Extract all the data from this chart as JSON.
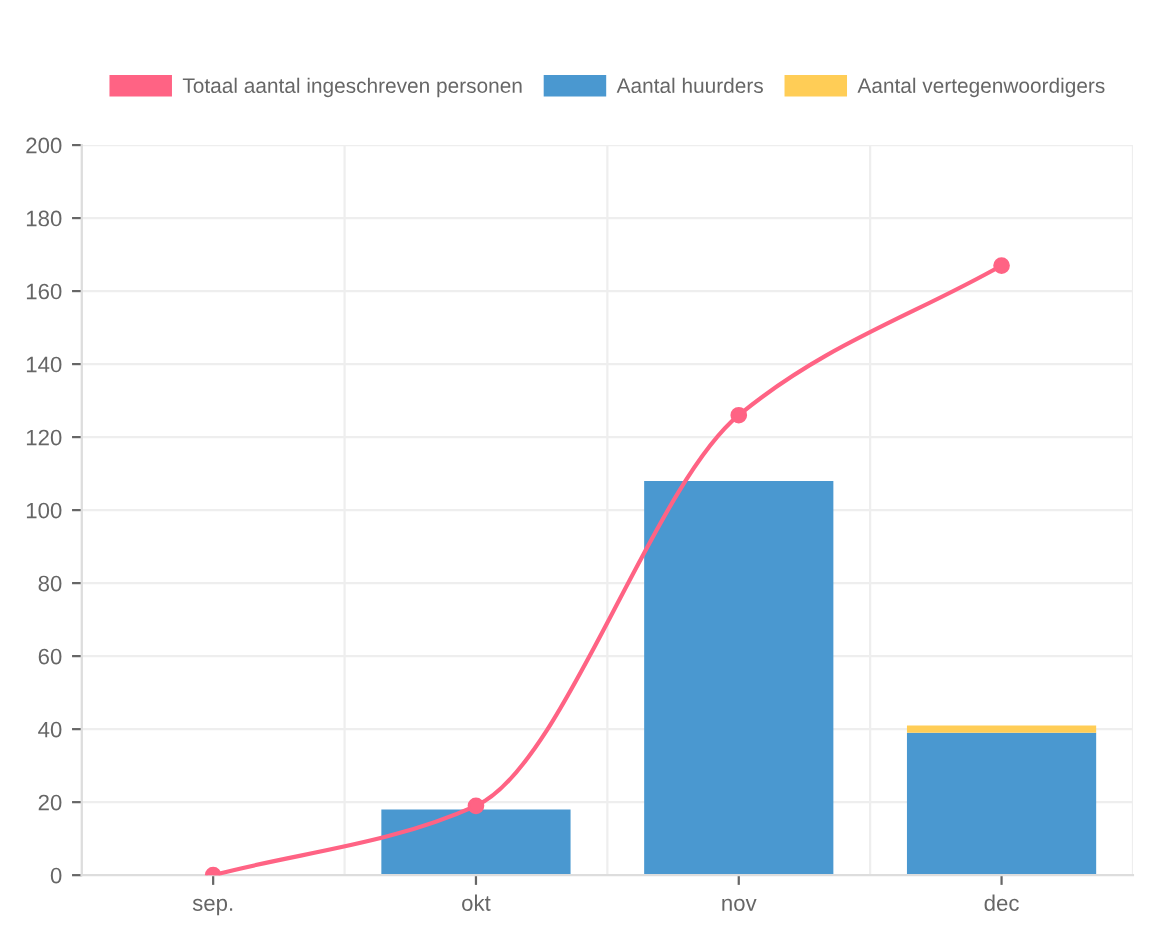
{
  "chart_data": {
    "type": "bar",
    "stacked": true,
    "categories": [
      "sep.",
      "okt",
      "nov",
      "dec"
    ],
    "series": [
      {
        "name": "Totaal aantal ingeschreven personen",
        "type": "line",
        "color": "#ff6384",
        "values": [
          0,
          19,
          126,
          167
        ],
        "marker": "circle"
      },
      {
        "name": "Aantal huurders",
        "color": "#4a98d0",
        "values": [
          0,
          18,
          108,
          39
        ]
      },
      {
        "name": "Aantal vertegenwoordigers",
        "color": "#ffcd56",
        "values": [
          0,
          0,
          0,
          2
        ]
      }
    ],
    "ylim": [
      0,
      200
    ],
    "yticks": [
      0,
      20,
      40,
      60,
      80,
      100,
      120,
      140,
      160,
      180,
      200
    ],
    "grid": true,
    "legend": "top"
  }
}
